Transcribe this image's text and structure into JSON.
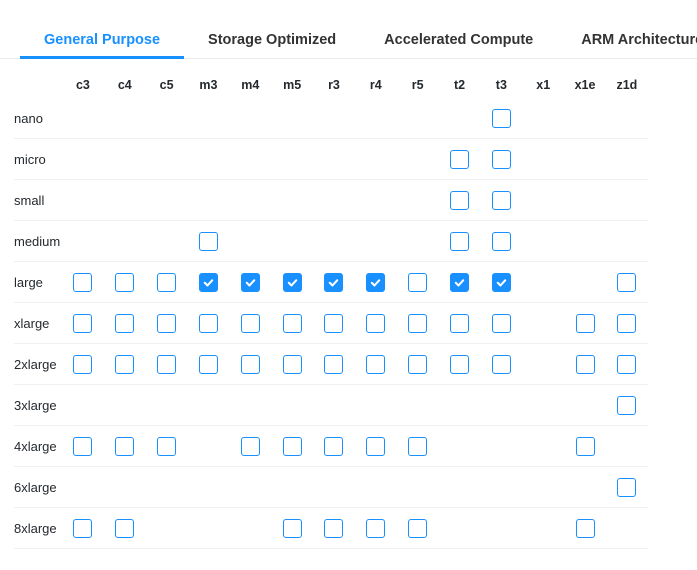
{
  "theme": {
    "accent_color": "#1890ff",
    "divider_color": "#f0f0f0",
    "tab_inactive_color": "#333333"
  },
  "tabs": [
    {
      "label": "General Purpose",
      "active": true
    },
    {
      "label": "Storage Optimized",
      "active": false
    },
    {
      "label": "Accelerated Compute",
      "active": false
    },
    {
      "label": "ARM Architecture",
      "active": false
    }
  ],
  "matrix": {
    "columns": [
      "c3",
      "c4",
      "c5",
      "m3",
      "m4",
      "m5",
      "r3",
      "r4",
      "r5",
      "t2",
      "t3",
      "x1",
      "x1e",
      "z1d"
    ],
    "rows": [
      {
        "label": "nano",
        "cells": [
          "none",
          "none",
          "none",
          "none",
          "none",
          "none",
          "none",
          "none",
          "none",
          "none",
          "unchecked",
          "none",
          "none",
          "none"
        ]
      },
      {
        "label": "micro",
        "cells": [
          "none",
          "none",
          "none",
          "none",
          "none",
          "none",
          "none",
          "none",
          "none",
          "unchecked",
          "unchecked",
          "none",
          "none",
          "none"
        ]
      },
      {
        "label": "small",
        "cells": [
          "none",
          "none",
          "none",
          "none",
          "none",
          "none",
          "none",
          "none",
          "none",
          "unchecked",
          "unchecked",
          "none",
          "none",
          "none"
        ]
      },
      {
        "label": "medium",
        "cells": [
          "none",
          "none",
          "none",
          "unchecked",
          "none",
          "none",
          "none",
          "none",
          "none",
          "unchecked",
          "unchecked",
          "none",
          "none",
          "none"
        ]
      },
      {
        "label": "large",
        "cells": [
          "unchecked",
          "unchecked",
          "unchecked",
          "checked",
          "checked",
          "checked",
          "checked",
          "checked",
          "unchecked",
          "checked",
          "checked",
          "none",
          "none",
          "unchecked"
        ]
      },
      {
        "label": "xlarge",
        "cells": [
          "unchecked",
          "unchecked",
          "unchecked",
          "unchecked",
          "unchecked",
          "unchecked",
          "unchecked",
          "unchecked",
          "unchecked",
          "unchecked",
          "unchecked",
          "none",
          "unchecked",
          "unchecked"
        ]
      },
      {
        "label": "2xlarge",
        "cells": [
          "unchecked",
          "unchecked",
          "unchecked",
          "unchecked",
          "unchecked",
          "unchecked",
          "unchecked",
          "unchecked",
          "unchecked",
          "unchecked",
          "unchecked",
          "none",
          "unchecked",
          "unchecked"
        ]
      },
      {
        "label": "3xlarge",
        "cells": [
          "none",
          "none",
          "none",
          "none",
          "none",
          "none",
          "none",
          "none",
          "none",
          "none",
          "none",
          "none",
          "none",
          "unchecked"
        ]
      },
      {
        "label": "4xlarge",
        "cells": [
          "unchecked",
          "unchecked",
          "unchecked",
          "none",
          "unchecked",
          "unchecked",
          "unchecked",
          "unchecked",
          "unchecked",
          "none",
          "none",
          "none",
          "unchecked",
          "none"
        ]
      },
      {
        "label": "6xlarge",
        "cells": [
          "none",
          "none",
          "none",
          "none",
          "none",
          "none",
          "none",
          "none",
          "none",
          "none",
          "none",
          "none",
          "none",
          "unchecked"
        ]
      },
      {
        "label": "8xlarge",
        "cells": [
          "unchecked",
          "unchecked",
          "none",
          "none",
          "none",
          "unchecked",
          "unchecked",
          "unchecked",
          "unchecked",
          "none",
          "none",
          "none",
          "unchecked",
          "none"
        ]
      }
    ]
  }
}
